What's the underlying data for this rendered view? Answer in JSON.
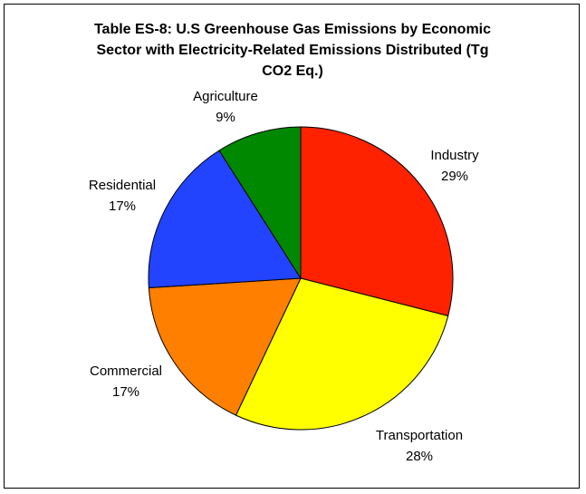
{
  "chart_data": {
    "type": "pie",
    "title_lines": [
      "Table ES-8: U.S Greenhouse Gas Emissions by Economic",
      "Sector with Electricity-Related Emissions Distributed (Tg",
      "CO2 Eq.)"
    ],
    "slices": [
      {
        "label": "Industry",
        "value": 29,
        "value_label": "29%",
        "color": "#ff2200"
      },
      {
        "label": "Transportation",
        "value": 28,
        "value_label": "28%",
        "color": "#ffff00"
      },
      {
        "label": "Commercial",
        "value": 17,
        "value_label": "17%",
        "color": "#ff7f00"
      },
      {
        "label": "Residential",
        "value": 17,
        "value_label": "17%",
        "color": "#2244ff"
      },
      {
        "label": "Agriculture",
        "value": 9,
        "value_label": "9%",
        "color": "#008800"
      }
    ],
    "start": "12 o'clock",
    "direction": "clockwise",
    "legend": "none",
    "labels_outside": true
  }
}
